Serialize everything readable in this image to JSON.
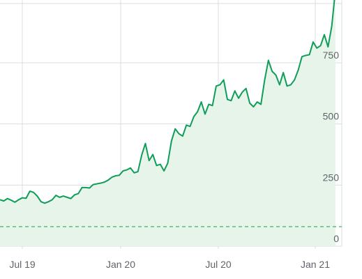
{
  "chart_data": {
    "type": "area",
    "title": "",
    "xlabel": "",
    "ylabel": "",
    "x_tick_labels": [
      "Jul 19",
      "Jan 20",
      "Jul 20",
      "Jan 21"
    ],
    "y_ticks": [
      0,
      250,
      500,
      750
    ],
    "ylim": [
      0,
      990
    ],
    "grid": true,
    "colors": {
      "line": "#0f9d58",
      "fill": "#e6f4ea",
      "grid": "#dadce0",
      "reference": "#34a853",
      "text": "#5f6368"
    },
    "reference_line": {
      "value": 80,
      "style": "dashed"
    },
    "series": [
      {
        "values": [
          190,
          185,
          195,
          188,
          180,
          190,
          198,
          196,
          225,
          220,
          205,
          182,
          176,
          182,
          190,
          208,
          200,
          205,
          200,
          195,
          210,
          215,
          240,
          240,
          238,
          252,
          255,
          258,
          262,
          270,
          282,
          288,
          290,
          308,
          312,
          320,
          300,
          305,
          372,
          420,
          350,
          375,
          330,
          335,
          308,
          340,
          430,
          480,
          460,
          450,
          495,
          490,
          530,
          550,
          590,
          540,
          580,
          575,
          655,
          660,
          680,
          600,
          595,
          635,
          605,
          630,
          645,
          585,
          570,
          590,
          580,
          680,
          760,
          715,
          700,
          660,
          710,
          655,
          660,
          680,
          720,
          775,
          780,
          783,
          835,
          810,
          820,
          865,
          815,
          900,
          1050
        ]
      }
    ]
  }
}
